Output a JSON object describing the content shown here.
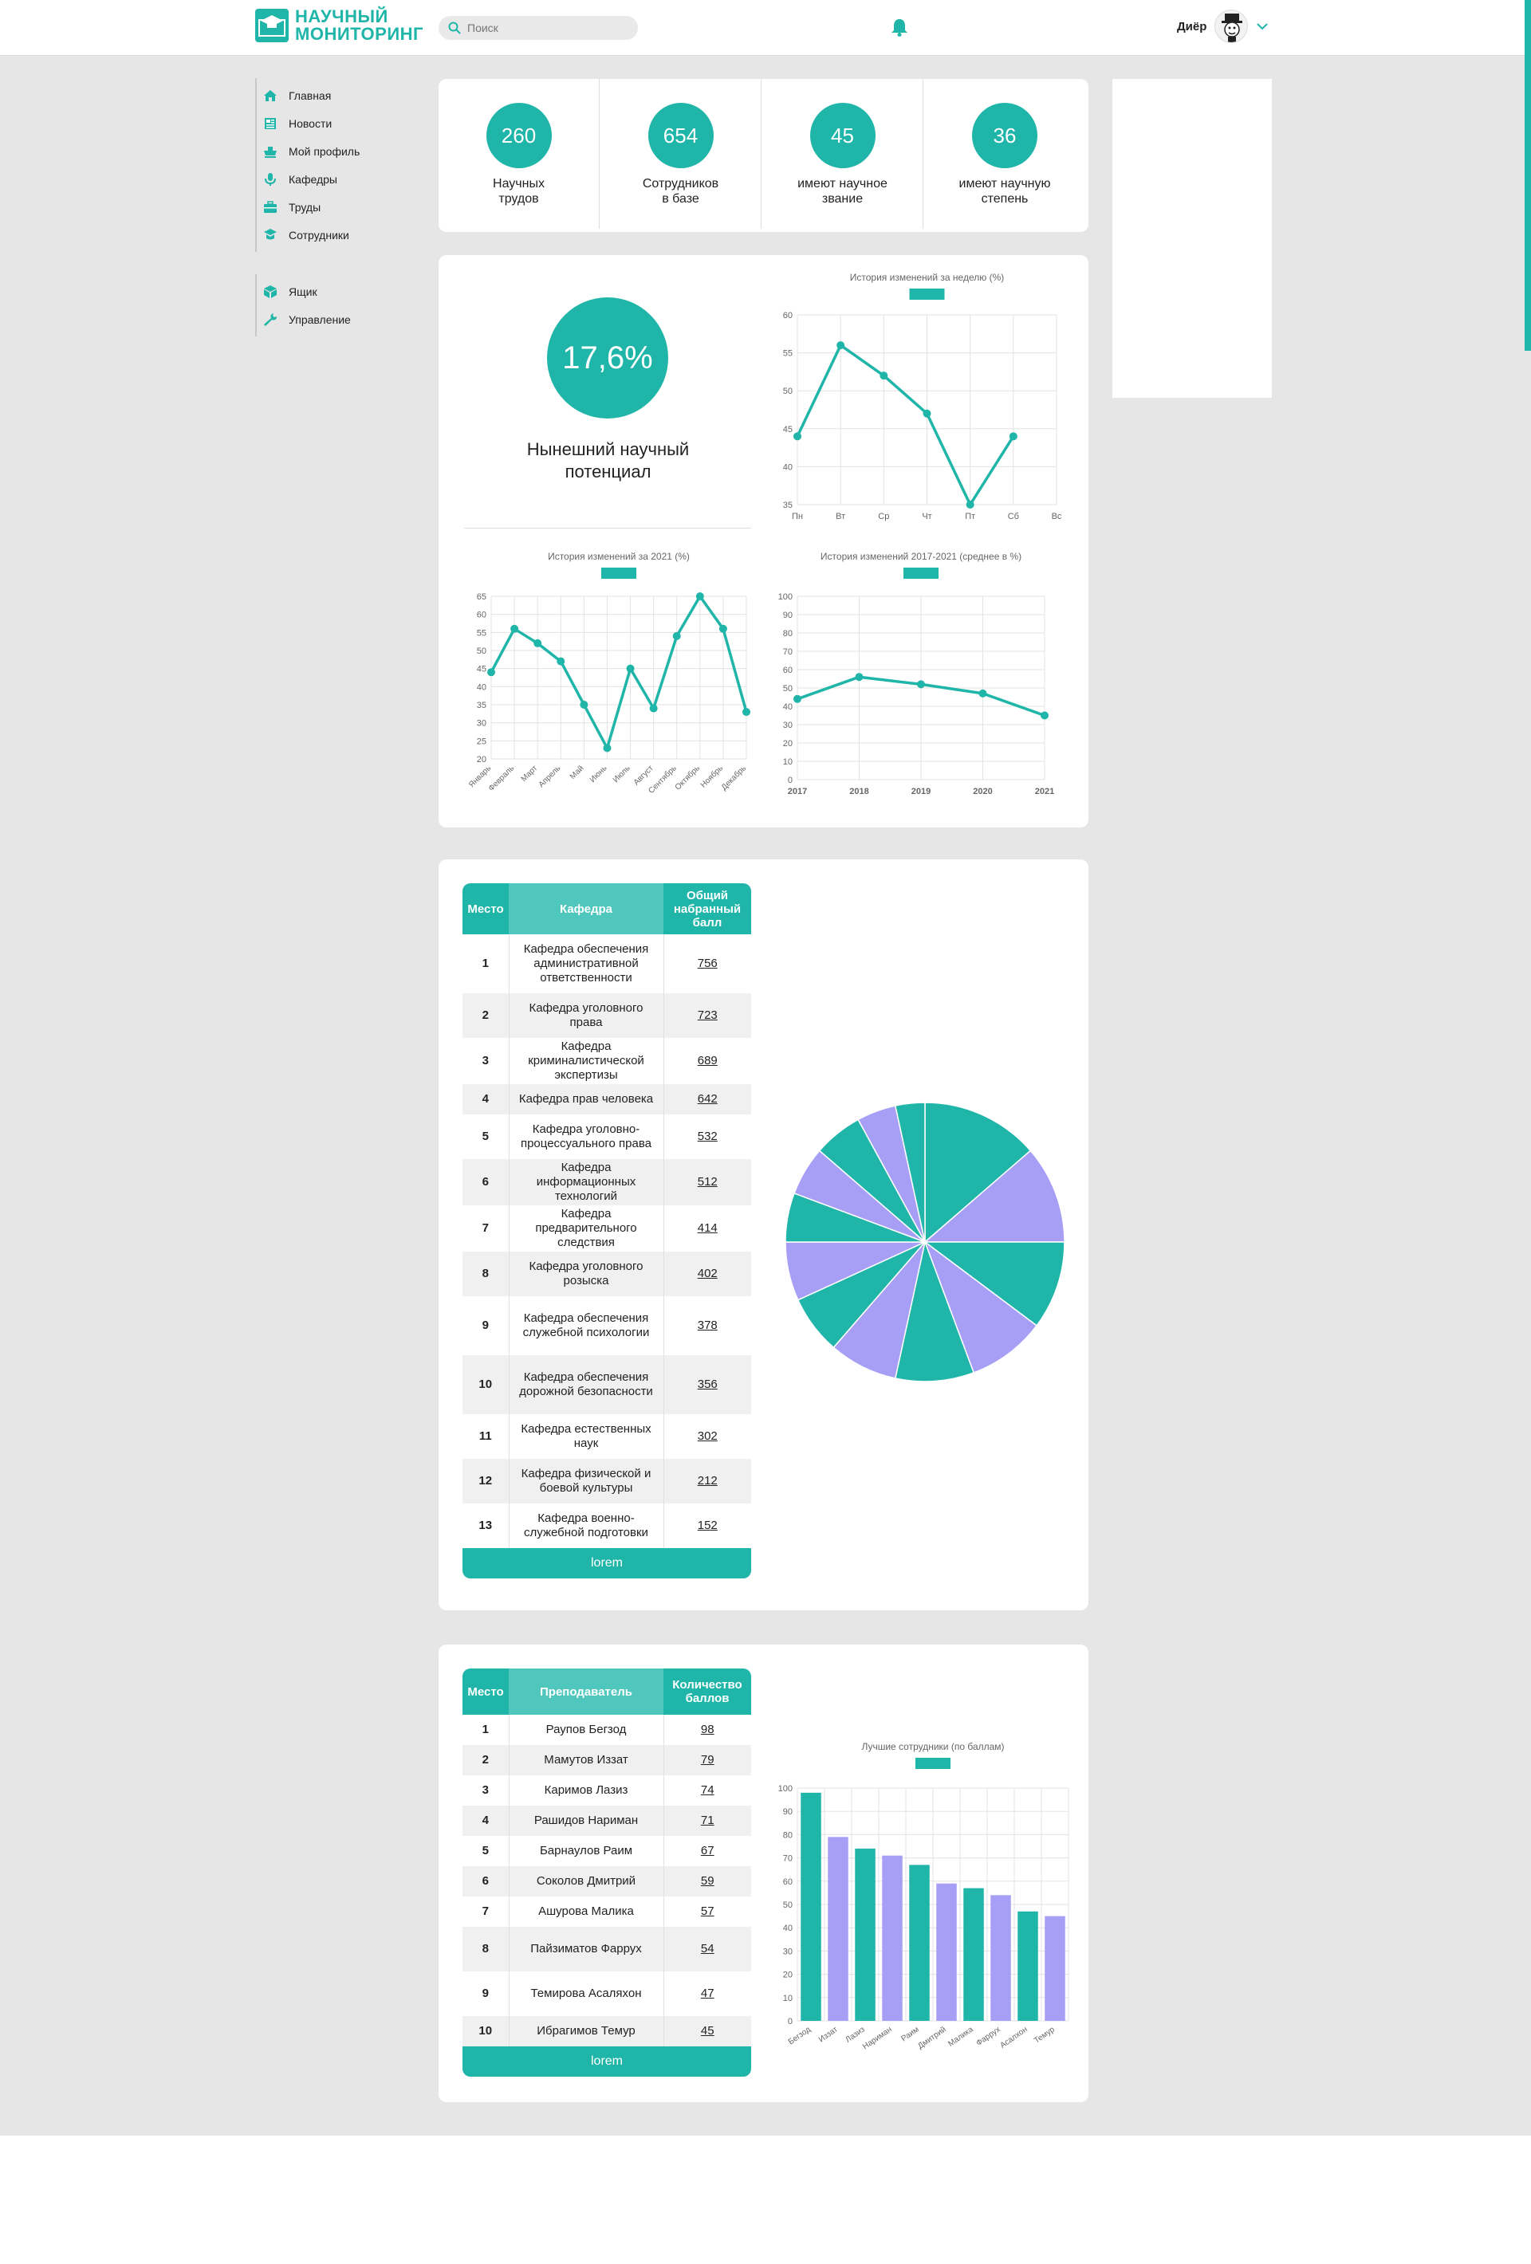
{
  "header": {
    "logo_line1": "НАУЧНЫЙ",
    "logo_line2": "МОНИТОРИНГ",
    "search_placeholder": "Поиск",
    "user_name": "Диёр"
  },
  "sidebar": {
    "group1": [
      {
        "label": "Главная",
        "icon": "home-icon"
      },
      {
        "label": "Новости",
        "icon": "news-icon"
      },
      {
        "label": "Мой профиль",
        "icon": "profile-icon"
      },
      {
        "label": "Кафедры",
        "icon": "microphone-icon"
      },
      {
        "label": "Труды",
        "icon": "briefcase-icon"
      },
      {
        "label": "Сотрудники",
        "icon": "users-icon"
      }
    ],
    "group2": [
      {
        "label": "Ящик",
        "icon": "box-icon"
      },
      {
        "label": "Управление",
        "icon": "wrench-icon"
      }
    ]
  },
  "stats": [
    {
      "value": "260",
      "label": "Научных\nтрудов"
    },
    {
      "value": "654",
      "label": "Сотрудников\nв базе"
    },
    {
      "value": "45",
      "label": "имеют научное\nзвание"
    },
    {
      "value": "36",
      "label": "имеют научную\nстепень"
    }
  ],
  "potential": {
    "value": "17,6%",
    "label": "Нынешний научный\nпотенциал"
  },
  "colors": {
    "accent": "#1fb5a8",
    "purple": "#a79ff5"
  },
  "chart_data": [
    {
      "type": "line",
      "title": "История изменений за неделю (%)",
      "categories": [
        "Пн",
        "Вт",
        "Ср",
        "Чт",
        "Пт",
        "Сб",
        "Вс"
      ],
      "values": [
        44,
        56,
        52,
        47,
        35,
        44,
        null
      ],
      "ylim": [
        35,
        60
      ],
      "yticks": [
        35,
        40,
        45,
        50,
        55,
        60
      ],
      "grid": true
    },
    {
      "type": "line",
      "title": "История изменений за 2021 (%)",
      "categories": [
        "Январь",
        "Февраль",
        "Март",
        "Апрель",
        "Май",
        "Июнь",
        "Июль",
        "Август",
        "Сентябрь",
        "Октябрь",
        "Ноябрь",
        "Декабрь"
      ],
      "values": [
        44,
        56,
        52,
        47,
        35,
        23,
        45,
        34,
        54,
        65,
        56,
        33
      ],
      "ylim": [
        20,
        65
      ],
      "yticks": [
        20,
        25,
        30,
        35,
        40,
        45,
        50,
        55,
        60,
        65
      ],
      "grid": true
    },
    {
      "type": "line",
      "title": "История изменений 2017-2021 (среднее в %)",
      "categories": [
        "2017",
        "2018",
        "2019",
        "2020",
        "2021"
      ],
      "values": [
        44,
        56,
        52,
        47,
        35
      ],
      "ylim": [
        0,
        100
      ],
      "yticks": [
        0,
        10,
        20,
        30,
        40,
        50,
        60,
        70,
        80,
        90,
        100
      ],
      "grid": true
    },
    {
      "type": "pie",
      "categories": [
        "Кафедра обеспечения административной ответственности",
        "Кафедра уголовного права",
        "Кафедра криминалистической экспертизы",
        "Кафедра прав человека",
        "Кафедра уголовно-процессуального права",
        "Кафедра информационных технологий",
        "Кафедра предварительного следствия",
        "Кафедра уголовного розыска",
        "Кафедра обеспечения служебной психологии",
        "Кафедра обеспечения дорожной безопасности",
        "Кафедра естественных наук",
        "Кафедра физической и боевой культуры",
        "Кафедра военно-служебной подготовки"
      ],
      "values": [
        12,
        10,
        9,
        8,
        8,
        7,
        6,
        6,
        5,
        5,
        5,
        4,
        3
      ],
      "colors": [
        "#1fb5a8",
        "#a79ff5",
        "#1fb5a8",
        "#a79ff5",
        "#1fb5a8",
        "#a79ff5",
        "#1fb5a8",
        "#a79ff5",
        "#1fb5a8",
        "#a79ff5",
        "#1fb5a8",
        "#a79ff5",
        "#1fb5a8"
      ]
    },
    {
      "type": "bar",
      "title": "Лучшие сотрудники (по баллам)",
      "categories": [
        "Бегзод",
        "Иззат",
        "Лазиз",
        "Нариман",
        "Раим",
        "Дмитрий",
        "Малика",
        "Фаррух",
        "Асалхон",
        "Темур"
      ],
      "values": [
        98,
        79,
        74,
        71,
        67,
        59,
        57,
        54,
        47,
        45
      ],
      "ylim": [
        0,
        100
      ],
      "yticks": [
        0,
        10,
        20,
        30,
        40,
        50,
        60,
        70,
        80,
        90,
        100
      ],
      "grid": true
    }
  ],
  "departments": {
    "headers": [
      "Место",
      "Кафедра",
      "Общий набранный балл"
    ],
    "rows": [
      {
        "place": "1",
        "name": "Кафедра обеспечения административной ответственности",
        "score": "756"
      },
      {
        "place": "2",
        "name": "Кафедра уголовного права",
        "score": "723"
      },
      {
        "place": "3",
        "name": "Кафедра криминалистической экспертизы",
        "score": "689"
      },
      {
        "place": "4",
        "name": "Кафедра прав человека",
        "score": "642"
      },
      {
        "place": "5",
        "name": "Кафедра уголовно-процессуального права",
        "score": "532"
      },
      {
        "place": "6",
        "name": "Кафедра информационных технологий",
        "score": "512"
      },
      {
        "place": "7",
        "name": "Кафедра предварительного следствия",
        "score": "414"
      },
      {
        "place": "8",
        "name": "Кафедра уголовного розыска",
        "score": "402"
      },
      {
        "place": "9",
        "name": "Кафедра обеспечения служебной психологии",
        "score": "378"
      },
      {
        "place": "10",
        "name": "Кафедра обеспечения дорожной безопасности",
        "score": "356"
      },
      {
        "place": "11",
        "name": "Кафедра естественных наук",
        "score": "302"
      },
      {
        "place": "12",
        "name": "Кафедра физической и боевой культуры",
        "score": "212"
      },
      {
        "place": "13",
        "name": "Кафедра военно-служебной подготовки",
        "score": "152"
      }
    ],
    "footer": "lorem"
  },
  "teachers": {
    "headers": [
      "Место",
      "Преподаватель",
      "Количество баллов"
    ],
    "rows": [
      {
        "place": "1",
        "name": "Раупов Бегзод",
        "score": "98"
      },
      {
        "place": "2",
        "name": "Мамутов Иззат",
        "score": "79"
      },
      {
        "place": "3",
        "name": "Каримов Лазиз",
        "score": "74"
      },
      {
        "place": "4",
        "name": "Рашидов Нариман",
        "score": "71"
      },
      {
        "place": "5",
        "name": "Барнаулов Раим",
        "score": "67"
      },
      {
        "place": "6",
        "name": "Соколов Дмитрий",
        "score": "59"
      },
      {
        "place": "7",
        "name": "Ашурова Малика",
        "score": "57"
      },
      {
        "place": "8",
        "name": "Пайзиматов Фаррух",
        "score": "54"
      },
      {
        "place": "9",
        "name": "Темирова Асаляхон",
        "score": "47"
      },
      {
        "place": "10",
        "name": "Ибрагимов Темур",
        "score": "45"
      }
    ],
    "footer": "lorem"
  }
}
